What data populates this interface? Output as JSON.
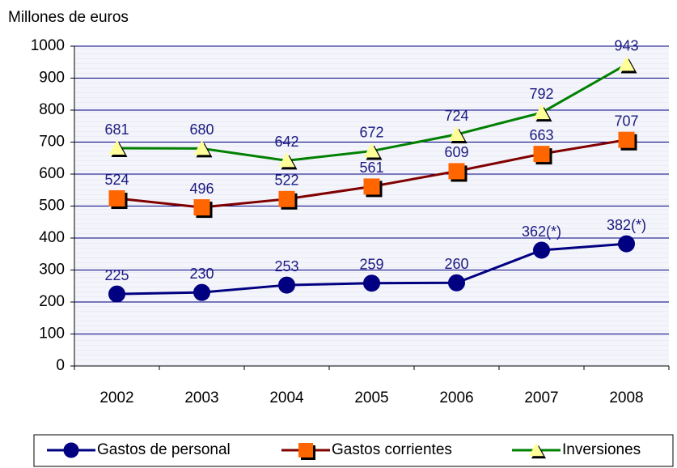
{
  "chart_data": {
    "type": "line",
    "y_axis_label": "Millones de euros",
    "categories": [
      "2002",
      "2003",
      "2004",
      "2005",
      "2006",
      "2007",
      "2008"
    ],
    "series": [
      {
        "name": "Gastos de personal",
        "color": "#000080",
        "marker": "circle",
        "marker_color": "#000080",
        "values": [
          225,
          230,
          253,
          259,
          260,
          362,
          382
        ],
        "value_labels": [
          "225",
          "230",
          "253",
          "259",
          "260",
          "362(*)",
          "382(*)"
        ]
      },
      {
        "name": "Gastos corrientes",
        "color": "#800000",
        "marker": "square",
        "marker_color": "#ff6600",
        "values": [
          524,
          496,
          522,
          561,
          609,
          663,
          707
        ]
      },
      {
        "name": "Inversiones",
        "color": "#008000",
        "marker": "triangle",
        "marker_color": "#ffff99",
        "values": [
          681,
          680,
          642,
          672,
          724,
          792,
          943
        ]
      }
    ],
    "ylim": [
      0,
      1000
    ],
    "yticks": [
      0,
      100,
      200,
      300,
      400,
      500,
      600,
      700,
      800,
      900,
      1000
    ],
    "grid": true,
    "legend": "bottom"
  }
}
